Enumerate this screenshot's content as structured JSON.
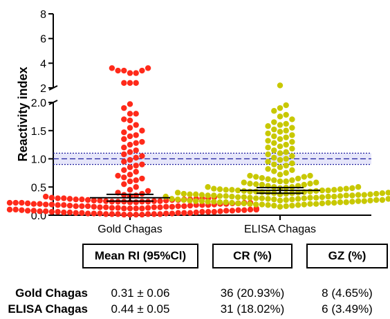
{
  "chart_data": {
    "type": "scatter",
    "ylabel": "Reactivity index",
    "y_axis": {
      "broken": true,
      "lower_ticks": [
        "0.0",
        "0.5",
        "1.0",
        "1.5",
        "2.0"
      ],
      "lower_range": [
        0,
        2.0
      ],
      "upper_ticks": [
        "2",
        "4",
        "6",
        "8"
      ],
      "upper_range": [
        2,
        8
      ]
    },
    "cutoff": {
      "value": 1.0,
      "band": [
        0.9,
        1.1
      ]
    },
    "categories": [
      "Gold Chagas",
      "ELISA Chagas"
    ],
    "series": [
      {
        "color": "#ff2a1a",
        "mean": 0.31,
        "ci": [
          0.25,
          0.37
        ],
        "values": [
          3.6,
          3.6,
          3.4,
          3.4,
          3.4,
          3.2,
          3.2,
          2.4,
          2.4,
          2.4,
          1.97,
          1.9,
          1.8,
          1.8,
          1.7,
          1.68,
          1.6,
          1.55,
          1.5,
          1.47,
          1.42,
          1.4,
          1.35,
          1.3,
          1.28,
          1.25,
          1.2,
          1.15,
          1.12,
          1.08,
          1.05,
          1.02,
          0.98,
          0.95,
          0.9,
          0.88,
          0.85,
          0.8,
          0.77,
          0.72,
          0.7,
          0.67,
          0.65,
          0.62,
          0.6,
          0.55,
          0.5,
          0.45,
          0.43,
          0.4,
          0.38,
          0.36,
          0.35,
          0.33,
          0.31,
          0.3,
          0.29,
          0.28,
          0.27,
          0.26,
          0.25,
          0.24,
          0.23,
          0.22,
          0.21,
          0.2,
          0.19,
          0.18,
          0.17,
          0.16,
          0.15,
          0.14,
          0.13,
          0.12,
          0.11,
          0.1,
          0.09,
          0.08,
          0.07,
          0.06,
          0.05,
          0.04,
          0.03,
          0.02,
          0.01,
          0.34,
          0.32,
          0.3,
          0.28,
          0.27,
          0.25,
          0.24,
          0.23,
          0.22,
          0.21,
          0.2,
          0.19,
          0.18,
          0.17,
          0.16,
          0.15,
          0.14,
          0.13,
          0.12,
          0.11,
          0.1,
          0.09,
          0.08,
          0.07,
          0.06,
          0.05,
          0.04,
          0.03,
          0.02,
          0.01,
          0.3,
          0.28,
          0.26,
          0.24,
          0.22,
          0.2,
          0.18,
          0.16,
          0.14,
          0.12,
          0.1,
          0.08,
          0.06,
          0.04,
          0.02,
          0.3,
          0.27,
          0.24,
          0.21,
          0.18,
          0.15,
          0.12,
          0.09,
          0.06,
          0.03,
          0.29,
          0.25,
          0.22,
          0.19,
          0.16,
          0.13,
          0.1,
          0.07,
          0.04,
          0.02,
          0.28,
          0.24,
          0.2,
          0.16,
          0.12,
          0.08,
          0.05,
          0.03,
          0.02,
          0.01,
          0.26,
          0.22,
          0.18,
          0.14,
          0.1,
          0.06,
          0.04,
          0.03,
          0.02,
          0.01
        ]
      },
      {
        "color": "#c8c800",
        "mean": 0.44,
        "ci": [
          0.39,
          0.49
        ],
        "values": [
          2.2,
          1.95,
          1.9,
          1.85,
          1.78,
          1.75,
          1.7,
          1.65,
          1.62,
          1.6,
          1.58,
          1.55,
          1.52,
          1.5,
          1.48,
          1.45,
          1.42,
          1.4,
          1.38,
          1.35,
          1.32,
          1.3,
          1.28,
          1.25,
          1.22,
          1.2,
          1.18,
          1.15,
          1.12,
          1.1,
          1.08,
          1.05,
          1.02,
          1.0,
          0.98,
          0.95,
          0.92,
          0.9,
          0.88,
          0.85,
          0.82,
          0.8,
          0.78,
          0.75,
          0.72,
          0.7,
          0.68,
          0.66,
          0.64,
          0.62,
          0.6,
          0.58,
          0.56,
          0.54,
          0.52,
          0.5,
          0.49,
          0.48,
          0.47,
          0.46,
          0.45,
          0.44,
          0.43,
          0.42,
          0.41,
          0.4,
          0.39,
          0.38,
          0.37,
          0.36,
          0.35,
          0.34,
          0.33,
          0.32,
          0.31,
          0.3,
          0.29,
          0.28,
          0.27,
          0.26,
          0.25,
          0.24,
          0.23,
          0.22,
          0.21,
          0.2,
          0.19,
          0.18,
          0.17,
          0.16,
          0.15,
          0.7,
          0.65,
          0.6,
          0.56,
          0.52,
          0.48,
          0.45,
          0.42,
          0.4,
          0.38,
          0.36,
          0.34,
          0.32,
          0.3,
          0.28,
          0.26,
          0.24,
          0.22,
          0.2,
          0.18,
          0.68,
          0.62,
          0.58,
          0.54,
          0.5,
          0.47,
          0.44,
          0.41,
          0.39,
          0.37,
          0.35,
          0.33,
          0.31,
          0.29,
          0.27,
          0.25,
          0.23,
          0.21,
          0.19,
          0.17,
          0.55,
          0.5,
          0.46,
          0.43,
          0.4,
          0.38,
          0.36,
          0.34,
          0.32,
          0.3,
          0.28,
          0.26,
          0.24,
          0.22,
          0.2,
          0.5,
          0.45,
          0.42,
          0.39,
          0.37,
          0.35,
          0.33,
          0.31,
          0.29,
          0.27,
          0.25,
          0.23,
          0.21,
          0.19,
          0.44,
          0.4,
          0.37,
          0.35,
          0.33,
          0.31,
          0.29,
          0.27,
          0.25,
          0.23
        ]
      }
    ]
  },
  "table": {
    "headers": [
      "Mean RI (95%Cl)",
      "CR (%)",
      "GZ (%)"
    ],
    "rows": [
      {
        "label": "Gold Chagas",
        "mean": "0.31 ± 0.06",
        "cr": "36 (20.93%)",
        "gz": "8 (4.65%)"
      },
      {
        "label": "ELISA Chagas",
        "mean": "0.44 ± 0.05",
        "cr": "31 (18.02%)",
        "gz": "6 (3.49%)"
      }
    ]
  }
}
